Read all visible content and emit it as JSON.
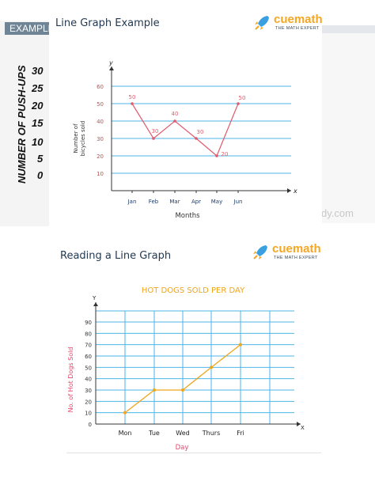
{
  "background": {
    "tab_label": "EXAMPLE",
    "yaxis_label": "NUMBER OF PUSH-UPS",
    "ticks": [
      "30",
      "25",
      "20",
      "15",
      "10",
      "5",
      "0"
    ],
    "watermark": "dy.com"
  },
  "panel1": {
    "title": "Line Graph Example",
    "logo_name": "cuemath",
    "logo_tagline": "THE MATH EXPERT"
  },
  "panel2": {
    "title": "Reading a Line Graph",
    "logo_name": "cuemath",
    "logo_tagline": "THE MATH EXPERT"
  },
  "colors": {
    "grid": "#4db6e8",
    "line1": "#e05a6d",
    "line2": "#f0a51a",
    "title2": "#f0a51a",
    "xlabel2": "#e0496b",
    "axis": "#333333",
    "logo": "#f5a623"
  },
  "chart_data": [
    {
      "type": "line",
      "title": "",
      "xlabel": "Months",
      "ylabel": "Number of bicycles sold",
      "x_axis_letter": "x",
      "y_axis_letter": "y",
      "categories": [
        "Jan",
        "Feb",
        "Mar",
        "Apr",
        "May",
        "Jun"
      ],
      "values": [
        50,
        30,
        40,
        30,
        20,
        50
      ],
      "data_labels": [
        "50",
        "30",
        "40",
        "30",
        "20",
        "50"
      ],
      "yticks": [
        "10",
        "20",
        "30",
        "40",
        "50",
        "60"
      ],
      "ylim": [
        0,
        60
      ],
      "grid": "horizontal"
    },
    {
      "type": "line",
      "title": "HOT DOGS SOLD PER DAY",
      "xlabel": "Day",
      "ylabel": "No. of Hot Dogs Sold",
      "x_axis_letter": "X",
      "y_axis_letter": "Y",
      "categories": [
        "Mon",
        "Tue",
        "Wed",
        "Thurs",
        "Fri"
      ],
      "values": [
        10,
        30,
        30,
        50,
        70
      ],
      "yticks": [
        "0",
        "10",
        "20",
        "30",
        "40",
        "50",
        "60",
        "70",
        "80",
        "90"
      ],
      "ylim": [
        0,
        90
      ],
      "grid": "both"
    }
  ]
}
